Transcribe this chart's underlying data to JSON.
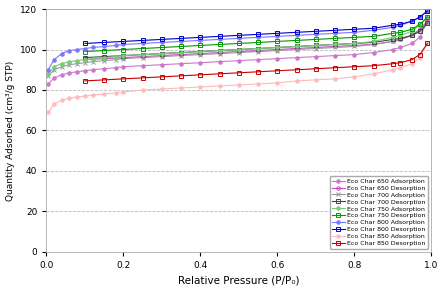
{
  "xlabel": "Relative Pressure (P/P₀)",
  "ylabel": "Quantity Adsorbed (cm³/g STP)",
  "xlim": [
    0,
    1.0
  ],
  "ylim": [
    0,
    120
  ],
  "yticks": [
    0,
    20,
    40,
    60,
    80,
    100,
    120
  ],
  "xticks": [
    0,
    0.2,
    0.4,
    0.6,
    0.8,
    1.0
  ],
  "series": [
    {
      "label": "Eco Char 650 Adsorption",
      "color": "#cc77cc",
      "marker": "o",
      "markersize": 2.5,
      "linewidth": 0.8,
      "filled": true,
      "x": [
        0.005,
        0.02,
        0.04,
        0.06,
        0.08,
        0.1,
        0.12,
        0.15,
        0.18,
        0.2,
        0.25,
        0.3,
        0.35,
        0.4,
        0.45,
        0.5,
        0.55,
        0.6,
        0.65,
        0.7,
        0.75,
        0.8,
        0.85,
        0.9,
        0.92,
        0.95,
        0.97,
        0.99
      ],
      "y": [
        83,
        86,
        87.5,
        88.5,
        89,
        89.5,
        90,
        90.5,
        91,
        91.5,
        92,
        92.5,
        93,
        93.5,
        94,
        94.5,
        95,
        95.5,
        96,
        96.5,
        97,
        97.5,
        98.5,
        100,
        101,
        103,
        106,
        114
      ]
    },
    {
      "label": "Eco Char 650 Desorption",
      "color": "#cc44cc",
      "marker": "o",
      "markersize": 2.5,
      "linewidth": 0.8,
      "filled": false,
      "x": [
        0.99,
        0.97,
        0.95,
        0.92,
        0.9,
        0.85,
        0.8,
        0.75,
        0.7,
        0.65,
        0.6,
        0.55,
        0.5,
        0.45,
        0.4,
        0.35,
        0.3,
        0.25,
        0.2,
        0.15,
        0.1
      ],
      "y": [
        114,
        110,
        107,
        105,
        104,
        102.5,
        102,
        101.5,
        101,
        100.5,
        100,
        99.5,
        99,
        98.5,
        98,
        97.5,
        97,
        96.5,
        96,
        95.5,
        95
      ]
    },
    {
      "label": "Eco Char 700 Adsorption",
      "color": "#999999",
      "marker": "x",
      "markersize": 3,
      "linewidth": 0.8,
      "filled": true,
      "x": [
        0.005,
        0.02,
        0.04,
        0.06,
        0.08,
        0.1,
        0.12,
        0.15,
        0.18,
        0.2,
        0.25,
        0.3,
        0.35,
        0.4,
        0.45,
        0.5,
        0.55,
        0.6,
        0.65,
        0.7,
        0.75,
        0.8,
        0.85,
        0.9,
        0.92,
        0.95,
        0.97,
        0.99
      ],
      "y": [
        87,
        90,
        91.5,
        92.5,
        93,
        93.5,
        94,
        94.5,
        95,
        95.5,
        96,
        96.5,
        97,
        97.5,
        98,
        98.5,
        99,
        99.5,
        100,
        100.5,
        101,
        101.5,
        102.5,
        104,
        105,
        107,
        109,
        113
      ]
    },
    {
      "label": "Eco Char 700 Desorption",
      "color": "#444444",
      "marker": "s",
      "markersize": 2.5,
      "linewidth": 0.8,
      "filled": false,
      "x": [
        0.99,
        0.97,
        0.95,
        0.92,
        0.9,
        0.85,
        0.8,
        0.75,
        0.7,
        0.65,
        0.6,
        0.55,
        0.5,
        0.45,
        0.4,
        0.35,
        0.3,
        0.25,
        0.2,
        0.15,
        0.1
      ],
      "y": [
        113,
        109,
        107,
        105.5,
        105,
        103.5,
        103,
        102.5,
        102,
        101.5,
        101,
        100.5,
        100,
        99.5,
        99,
        98.5,
        98,
        97.5,
        97,
        96.5,
        96
      ]
    },
    {
      "label": "Eco Char 750 Adsorption",
      "color": "#77cc77",
      "marker": "o",
      "markersize": 2.5,
      "linewidth": 0.8,
      "filled": true,
      "x": [
        0.005,
        0.02,
        0.04,
        0.06,
        0.08,
        0.1,
        0.12,
        0.15,
        0.18,
        0.2,
        0.25,
        0.3,
        0.35,
        0.4,
        0.45,
        0.5,
        0.55,
        0.6,
        0.65,
        0.7,
        0.75,
        0.8,
        0.85,
        0.9,
        0.92,
        0.95,
        0.97,
        0.99
      ],
      "y": [
        88,
        91.5,
        93,
        94,
        94.5,
        95,
        95.5,
        96,
        96.5,
        97,
        97.5,
        98,
        98.5,
        99,
        99.5,
        100,
        100.5,
        101,
        101.5,
        102,
        102.5,
        103,
        104,
        106,
        107,
        109,
        112,
        116
      ]
    },
    {
      "label": "Eco Char 750 Desorption",
      "color": "#009900",
      "marker": "s",
      "markersize": 2.5,
      "linewidth": 0.8,
      "filled": false,
      "x": [
        0.99,
        0.97,
        0.95,
        0.92,
        0.9,
        0.85,
        0.8,
        0.75,
        0.7,
        0.65,
        0.6,
        0.55,
        0.5,
        0.45,
        0.4,
        0.35,
        0.3,
        0.25,
        0.2,
        0.15,
        0.1
      ],
      "y": [
        116,
        112.5,
        110,
        108.5,
        108,
        106.5,
        106,
        105.5,
        105,
        104.5,
        104,
        103.5,
        103,
        102.5,
        102,
        101.5,
        101,
        100.5,
        100,
        99.5,
        99
      ]
    },
    {
      "label": "Eco Char 800 Adsorption",
      "color": "#7777ff",
      "marker": "o",
      "markersize": 2.5,
      "linewidth": 0.8,
      "filled": true,
      "x": [
        0.005,
        0.02,
        0.04,
        0.06,
        0.08,
        0.1,
        0.12,
        0.15,
        0.18,
        0.2,
        0.25,
        0.3,
        0.35,
        0.4,
        0.45,
        0.5,
        0.55,
        0.6,
        0.65,
        0.7,
        0.75,
        0.8,
        0.85,
        0.9,
        0.92,
        0.95,
        0.97,
        0.99
      ],
      "y": [
        90,
        95,
        98,
        99.5,
        100,
        100.5,
        101,
        101.5,
        102,
        102.5,
        103,
        103.5,
        104,
        104.5,
        105,
        105.5,
        106,
        106.5,
        107,
        107.5,
        108,
        108.5,
        109.5,
        111,
        112,
        114,
        116,
        119
      ]
    },
    {
      "label": "Eco Char 800 Desorption",
      "color": "#0000cc",
      "marker": "s",
      "markersize": 2.5,
      "linewidth": 0.8,
      "filled": false,
      "x": [
        0.99,
        0.97,
        0.95,
        0.92,
        0.9,
        0.85,
        0.8,
        0.75,
        0.7,
        0.65,
        0.6,
        0.55,
        0.5,
        0.45,
        0.4,
        0.35,
        0.3,
        0.25,
        0.2,
        0.15,
        0.1
      ],
      "y": [
        119,
        116,
        114,
        112.5,
        112,
        110.5,
        110,
        109.5,
        109,
        108.5,
        108,
        107.5,
        107,
        106.5,
        106,
        105.5,
        105,
        104.5,
        104,
        103.5,
        103
      ]
    },
    {
      "label": "Eco Char 850 Adsorption",
      "color": "#ffbbbb",
      "marker": "o",
      "markersize": 2.5,
      "linewidth": 0.8,
      "filled": true,
      "x": [
        0.005,
        0.02,
        0.04,
        0.06,
        0.08,
        0.1,
        0.12,
        0.15,
        0.18,
        0.2,
        0.25,
        0.3,
        0.35,
        0.4,
        0.45,
        0.5,
        0.55,
        0.6,
        0.65,
        0.7,
        0.75,
        0.8,
        0.85,
        0.9,
        0.92,
        0.95,
        0.97,
        0.99
      ],
      "y": [
        69,
        73,
        75,
        76,
        76.5,
        77,
        77.5,
        78,
        78.5,
        79,
        80,
        80.5,
        81,
        81.5,
        82,
        82.5,
        83,
        83.5,
        84.5,
        85,
        85.5,
        86.5,
        88,
        90,
        91,
        93,
        96,
        103
      ]
    },
    {
      "label": "Eco Char 850 Desorption",
      "color": "#cc0000",
      "marker": "s",
      "markersize": 2.5,
      "linewidth": 0.8,
      "filled": false,
      "x": [
        0.99,
        0.97,
        0.95,
        0.92,
        0.9,
        0.85,
        0.8,
        0.75,
        0.7,
        0.65,
        0.6,
        0.55,
        0.5,
        0.45,
        0.4,
        0.35,
        0.3,
        0.25,
        0.2,
        0.15,
        0.1
      ],
      "y": [
        103,
        97.5,
        95,
        93.5,
        93,
        92,
        91.5,
        91,
        90.5,
        90,
        89.5,
        89,
        88.5,
        88,
        87.5,
        87,
        86.5,
        86,
        85.5,
        85,
        84.5
      ]
    }
  ]
}
